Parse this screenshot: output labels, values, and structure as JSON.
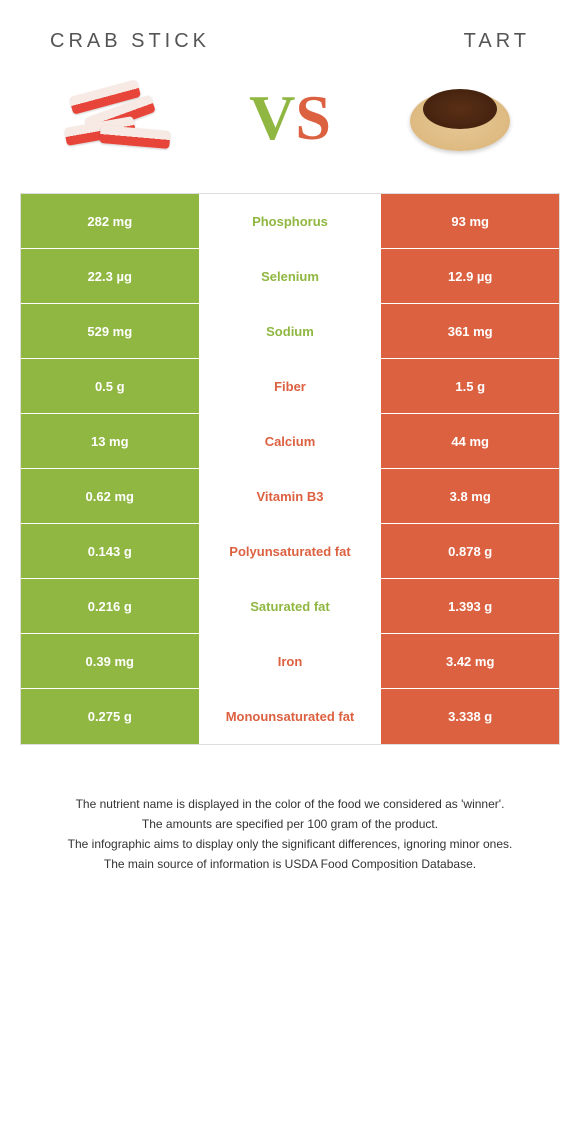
{
  "header": {
    "left_title": "Crab Stick",
    "right_title": "Tart",
    "vs_v": "V",
    "vs_s": "S"
  },
  "colors": {
    "green": "#8fb741",
    "orange": "#dc6140",
    "mid_green_text": "#8fb741",
    "mid_orange_text": "#dc6140"
  },
  "table": {
    "rows": [
      {
        "left": "282 mg",
        "mid": "Phosphorus",
        "right": "93 mg",
        "winner": "left"
      },
      {
        "left": "22.3 µg",
        "mid": "Selenium",
        "right": "12.9 µg",
        "winner": "left"
      },
      {
        "left": "529 mg",
        "mid": "Sodium",
        "right": "361 mg",
        "winner": "left"
      },
      {
        "left": "0.5 g",
        "mid": "Fiber",
        "right": "1.5 g",
        "winner": "right"
      },
      {
        "left": "13 mg",
        "mid": "Calcium",
        "right": "44 mg",
        "winner": "right"
      },
      {
        "left": "0.62 mg",
        "mid": "Vitamin B3",
        "right": "3.8 mg",
        "winner": "right"
      },
      {
        "left": "0.143 g",
        "mid": "Polyunsaturated fat",
        "right": "0.878 g",
        "winner": "right"
      },
      {
        "left": "0.216 g",
        "mid": "Saturated fat",
        "right": "1.393 g",
        "winner": "left"
      },
      {
        "left": "0.39 mg",
        "mid": "Iron",
        "right": "3.42 mg",
        "winner": "right"
      },
      {
        "left": "0.275 g",
        "mid": "Monounsaturated fat",
        "right": "3.338 g",
        "winner": "right"
      }
    ]
  },
  "footer": {
    "line1": "The nutrient name is displayed in the color of the food we considered as 'winner'.",
    "line2": "The amounts are specified per 100 gram of the product.",
    "line3": "The infographic aims to display only the significant differences, ignoring minor ones.",
    "line4": "The main source of information is USDA Food Composition Database."
  }
}
